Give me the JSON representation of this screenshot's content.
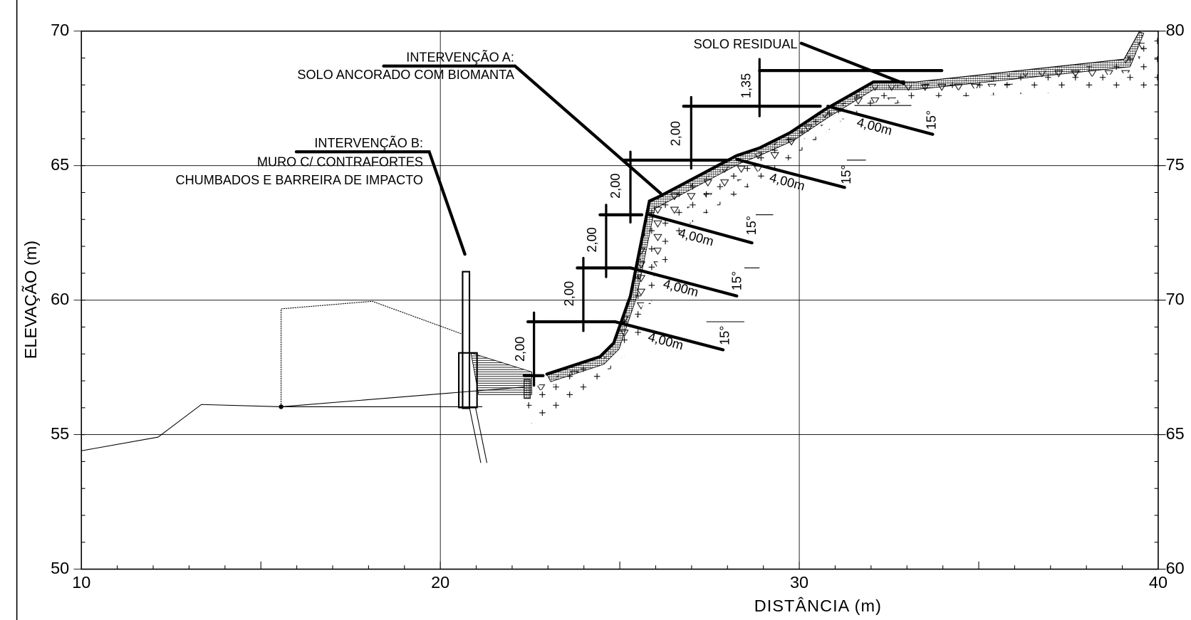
{
  "axes": {
    "x_label": "DISTÂNCIA  (m)",
    "y_label": "ELEVAÇÃO (m)",
    "xlim": [
      10,
      40
    ],
    "xticks": [
      10,
      20,
      30,
      40
    ],
    "ylim": [
      50,
      70
    ],
    "yticks": [
      50,
      55,
      60,
      65,
      70
    ],
    "y2lim": [
      60,
      80
    ],
    "y2ticks": [
      60,
      65,
      70,
      75,
      80
    ],
    "grid": true
  },
  "annotations": {
    "intervention_a": [
      "INTERVENÇÃO A:",
      "SOLO ANCORADO COM BIOMANTA"
    ],
    "intervention_b": [
      "INTERVENÇÃO B:",
      "MURO C/ CONTRAFORTES",
      "CHUMBADOS E BARREIRA DE IMPACTO"
    ],
    "residual_soil": "SOLO RESIDUAL"
  },
  "dimensions": {
    "heights": [
      "2,00",
      "2,00",
      "2,00",
      "2,00",
      "2,00",
      "1,35"
    ],
    "anchor_lengths": [
      "4,00m",
      "4,00m",
      "4,00m",
      "4,00m",
      "4,00m"
    ],
    "angles": [
      "15°",
      "15°",
      "15°",
      "15°",
      "15°"
    ]
  }
}
